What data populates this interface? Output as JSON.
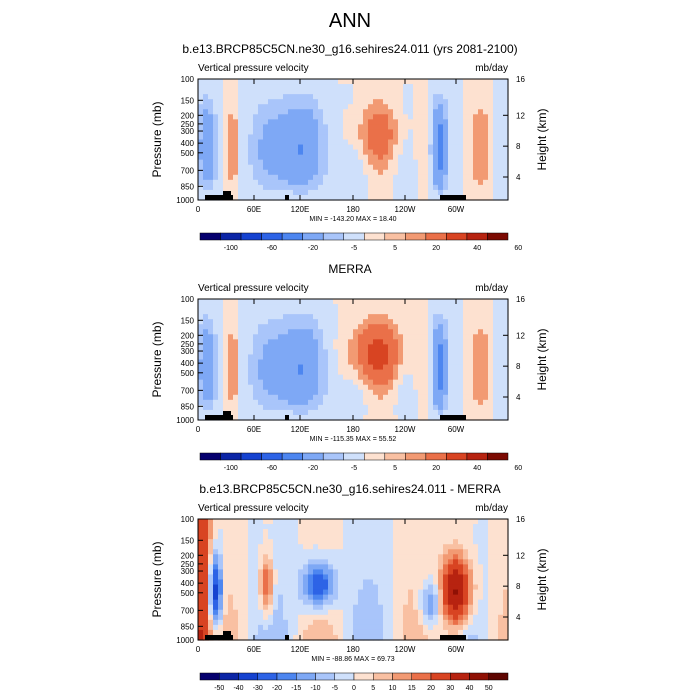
{
  "page_title": "ANN",
  "chart_data": [
    {
      "type": "heatmap",
      "title": "b.e13.BRCP85C5CN.ne30_g16.sehires24.011 (yrs 2081-2100)",
      "left_subtitle": "Vertical pressure velocity",
      "units": "mb/day",
      "xlabel": "",
      "ylabel": "Pressure (mb)",
      "ylabel_right": "Height (km)",
      "x_tick_labels": [
        "0",
        "60E",
        "120E",
        "180",
        "120W",
        "60W"
      ],
      "y_tick_labels": [
        "100",
        "150",
        "200",
        "250",
        "300",
        "400",
        "500",
        "700",
        "850",
        "1000"
      ],
      "y_right_tick_labels": [
        "16",
        "12",
        "8",
        "4"
      ],
      "min_max_text": "MIN = -143.20  MAX =  18.40",
      "colorbar_labels": [
        "-100",
        "-60",
        "-20",
        "-5",
        "5",
        "20",
        "40",
        "60"
      ],
      "colorbar_colors": [
        "#05006e",
        "#0b25a6",
        "#1542d0",
        "#2d63e6",
        "#4d86f0",
        "#7ea8f5",
        "#a9c5fa",
        "#cfe0fb",
        "#fde1d0",
        "#f9c0a2",
        "#f29a73",
        "#ea7049",
        "#d84422",
        "#b72310",
        "#7c0a02"
      ],
      "min": -143.2,
      "max": 18.4
    },
    {
      "type": "heatmap",
      "title": "MERRA",
      "left_subtitle": "Vertical pressure velocity",
      "units": "mb/day",
      "xlabel": "",
      "ylabel": "Pressure (mb)",
      "ylabel_right": "Height (km)",
      "x_tick_labels": [
        "0",
        "60E",
        "120E",
        "180",
        "120W",
        "60W"
      ],
      "y_tick_labels": [
        "100",
        "150",
        "200",
        "250",
        "300",
        "400",
        "500",
        "700",
        "850",
        "1000"
      ],
      "y_right_tick_labels": [
        "16",
        "12",
        "8",
        "4"
      ],
      "min_max_text": "MIN = -115.35  MAX =  55.52",
      "colorbar_labels": [
        "-100",
        "-60",
        "-20",
        "-5",
        "5",
        "20",
        "40",
        "60"
      ],
      "colorbar_colors": [
        "#05006e",
        "#0b25a6",
        "#1542d0",
        "#2d63e6",
        "#4d86f0",
        "#7ea8f5",
        "#a9c5fa",
        "#cfe0fb",
        "#fde1d0",
        "#f9c0a2",
        "#f29a73",
        "#ea7049",
        "#d84422",
        "#b72310",
        "#7c0a02"
      ],
      "min": -115.35,
      "max": 55.52
    },
    {
      "type": "heatmap",
      "title": "b.e13.BRCP85C5CN.ne30_g16.sehires24.011 - MERRA",
      "left_subtitle": "Vertical pressure velocity",
      "units": "mb/day",
      "xlabel": "",
      "ylabel": "Pressure (mb)",
      "ylabel_right": "Height (km)",
      "x_tick_labels": [
        "0",
        "60E",
        "120E",
        "180",
        "120W",
        "60W"
      ],
      "y_tick_labels": [
        "100",
        "150",
        "200",
        "250",
        "300",
        "400",
        "500",
        "700",
        "850",
        "1000"
      ],
      "y_right_tick_labels": [
        "16",
        "12",
        "8",
        "4"
      ],
      "min_max_text": "MIN = -88.86  MAX =  69.73",
      "colorbar_labels": [
        "-50",
        "-40",
        "-30",
        "-20",
        "-15",
        "-10",
        "-5",
        "0",
        "5",
        "10",
        "15",
        "20",
        "30",
        "40",
        "50"
      ],
      "colorbar_colors": [
        "#05006e",
        "#0b25a6",
        "#1542d0",
        "#2d63e6",
        "#4d86f0",
        "#7ea8f5",
        "#a9c5fa",
        "#cfe0fb",
        "#fde1d0",
        "#f9c0a2",
        "#f29a73",
        "#ea7049",
        "#d84422",
        "#b72310",
        "#8f1004",
        "#5e0501"
      ],
      "min": -88.86,
      "max": 69.73
    }
  ]
}
